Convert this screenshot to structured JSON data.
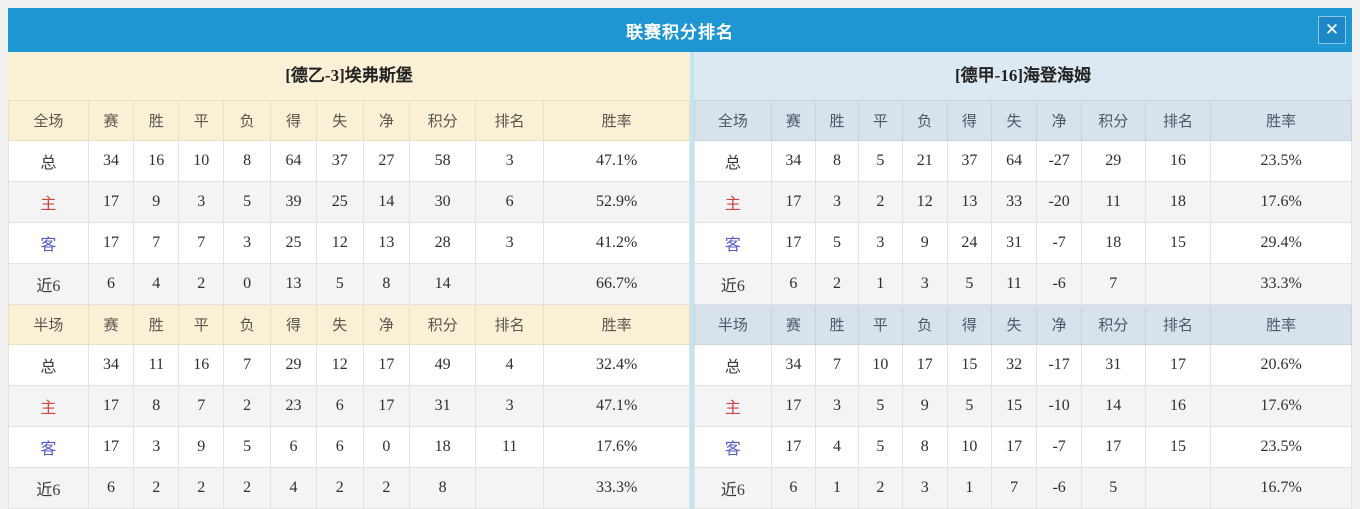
{
  "dialog": {
    "title": "联赛积分排名",
    "close_icon": "✕"
  },
  "columns": [
    "赛",
    "胜",
    "平",
    "负",
    "得",
    "失",
    "净",
    "积分",
    "排名",
    "胜率"
  ],
  "layout": {
    "col_widths_percent": [
      11.7,
      6.7,
      6.6,
      6.6,
      6.9,
      6.7,
      6.9,
      6.8,
      9.7,
      10,
      21.4
    ]
  },
  "colors": {
    "titlebar_blue": "#1E96D2",
    "left_theme_cream": "#FAF0D6",
    "right_theme_lightblue": "#DDE9F2",
    "points_and_rate_red": "#E0402E",
    "rank_blue": "#3E78BE",
    "home_label_red": "#CC4444",
    "away_label_blue": "#5959C8"
  },
  "panels": [
    {
      "side": "left",
      "team": "[德乙-3]埃弗斯堡",
      "sections": [
        {
          "scope": "全场",
          "rows": [
            {
              "label": "总",
              "type": "total",
              "values": [
                "34",
                "16",
                "10",
                "8",
                "64",
                "37",
                "27",
                "58",
                "3",
                "47.1%"
              ]
            },
            {
              "label": "主",
              "type": "home",
              "values": [
                "17",
                "9",
                "3",
                "5",
                "39",
                "25",
                "14",
                "30",
                "6",
                "52.9%"
              ]
            },
            {
              "label": "客",
              "type": "away",
              "values": [
                "17",
                "7",
                "7",
                "3",
                "25",
                "12",
                "13",
                "28",
                "3",
                "41.2%"
              ]
            },
            {
              "label": "近6",
              "type": "recent",
              "values": [
                "6",
                "4",
                "2",
                "0",
                "13",
                "5",
                "8",
                "14",
                "",
                "66.7%"
              ]
            }
          ]
        },
        {
          "scope": "半场",
          "rows": [
            {
              "label": "总",
              "type": "total",
              "values": [
                "34",
                "11",
                "16",
                "7",
                "29",
                "12",
                "17",
                "49",
                "4",
                "32.4%"
              ]
            },
            {
              "label": "主",
              "type": "home",
              "values": [
                "17",
                "8",
                "7",
                "2",
                "23",
                "6",
                "17",
                "31",
                "3",
                "47.1%"
              ]
            },
            {
              "label": "客",
              "type": "away",
              "values": [
                "17",
                "3",
                "9",
                "5",
                "6",
                "6",
                "0",
                "18",
                "11",
                "17.6%"
              ]
            },
            {
              "label": "近6",
              "type": "recent",
              "values": [
                "6",
                "2",
                "2",
                "2",
                "4",
                "2",
                "2",
                "8",
                "",
                "33.3%"
              ]
            }
          ]
        }
      ]
    },
    {
      "side": "right",
      "team": "[德甲-16]海登海姆",
      "sections": [
        {
          "scope": "全场",
          "rows": [
            {
              "label": "总",
              "type": "total",
              "values": [
                "34",
                "8",
                "5",
                "21",
                "37",
                "64",
                "-27",
                "29",
                "16",
                "23.5%"
              ]
            },
            {
              "label": "主",
              "type": "home",
              "values": [
                "17",
                "3",
                "2",
                "12",
                "13",
                "33",
                "-20",
                "11",
                "18",
                "17.6%"
              ]
            },
            {
              "label": "客",
              "type": "away",
              "values": [
                "17",
                "5",
                "3",
                "9",
                "24",
                "31",
                "-7",
                "18",
                "15",
                "29.4%"
              ]
            },
            {
              "label": "近6",
              "type": "recent",
              "values": [
                "6",
                "2",
                "1",
                "3",
                "5",
                "11",
                "-6",
                "7",
                "",
                "33.3%"
              ]
            }
          ]
        },
        {
          "scope": "半场",
          "rows": [
            {
              "label": "总",
              "type": "total",
              "values": [
                "34",
                "7",
                "10",
                "17",
                "15",
                "32",
                "-17",
                "31",
                "17",
                "20.6%"
              ]
            },
            {
              "label": "主",
              "type": "home",
              "values": [
                "17",
                "3",
                "5",
                "9",
                "5",
                "15",
                "-10",
                "14",
                "16",
                "17.6%"
              ]
            },
            {
              "label": "客",
              "type": "away",
              "values": [
                "17",
                "4",
                "5",
                "8",
                "10",
                "17",
                "-7",
                "17",
                "15",
                "23.5%"
              ]
            },
            {
              "label": "近6",
              "type": "recent",
              "values": [
                "6",
                "1",
                "2",
                "3",
                "1",
                "7",
                "-6",
                "5",
                "",
                "16.7%"
              ]
            }
          ]
        }
      ]
    }
  ]
}
